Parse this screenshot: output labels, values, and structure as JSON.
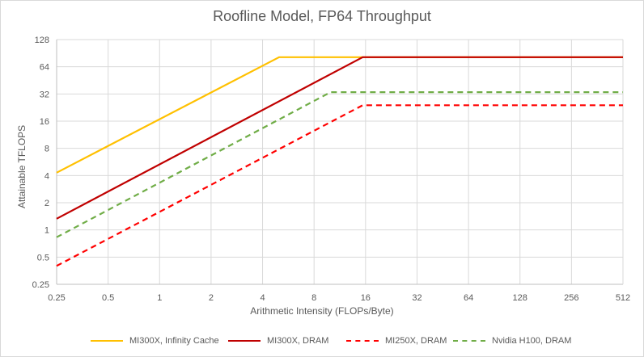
{
  "chart_data": {
    "type": "line",
    "title": "Roofline Model, FP64 Throughput",
    "xlabel": "Arithmetic Intensity (FLOPs/Byte)",
    "ylabel": "Attainable TFLOPS",
    "x_scale": "log2",
    "y_scale": "log2",
    "xlim": [
      0.25,
      512
    ],
    "ylim": [
      0.25,
      128
    ],
    "x_ticks": [
      "0.25",
      "0.5",
      "1",
      "2",
      "4",
      "8",
      "16",
      "32",
      "64",
      "128",
      "256",
      "512"
    ],
    "y_ticks": [
      "0.25",
      "0.5",
      "1",
      "2",
      "4",
      "8",
      "16",
      "32",
      "64",
      "128"
    ],
    "grid": true,
    "legend_position": "bottom",
    "series": [
      {
        "name": "MI300X, Infinity Cache",
        "color": "#FFC000",
        "dash": "solid",
        "points": [
          [
            0.25,
            4.3
          ],
          [
            5,
            81.7
          ],
          [
            512,
            81.7
          ]
        ]
      },
      {
        "name": "MI300X, DRAM",
        "color": "#C00000",
        "dash": "solid",
        "points": [
          [
            0.25,
            1.33
          ],
          [
            15.4,
            81.7
          ],
          [
            512,
            81.7
          ]
        ]
      },
      {
        "name": "MI250X, DRAM",
        "color": "#FF0000",
        "dash": "dashed",
        "points": [
          [
            0.25,
            0.4
          ],
          [
            15.4,
            24.0
          ],
          [
            512,
            24.0
          ]
        ]
      },
      {
        "name": "Nvidia H100, DRAM",
        "color": "#70AD47",
        "dash": "dashed",
        "points": [
          [
            0.25,
            0.83
          ],
          [
            10,
            33.5
          ],
          [
            512,
            33.5
          ]
        ]
      }
    ]
  }
}
